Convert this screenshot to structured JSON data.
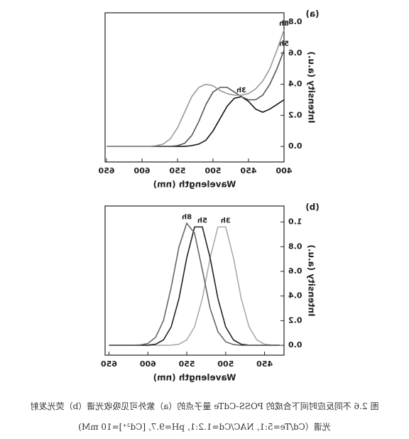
{
  "chart_data": [
    {
      "type": "line",
      "panel_label": "(a)",
      "x_label": "Wavelength (nm)",
      "y_label": "Intensity (a.u.)",
      "x": [
        400,
        410,
        420,
        430,
        440,
        450,
        460,
        470,
        480,
        490,
        500,
        510,
        520,
        530,
        540,
        550,
        560,
        570,
        580,
        590,
        600,
        610,
        620,
        630,
        640,
        650
      ],
      "series": [
        {
          "name": "3h",
          "color": "#111111",
          "values": [
            0.3,
            0.27,
            0.24,
            0.22,
            0.24,
            0.29,
            0.32,
            0.31,
            0.26,
            0.18,
            0.1,
            0.04,
            0.015,
            0.005,
            0,
            0,
            0,
            0,
            0,
            0,
            0,
            0,
            0,
            0,
            0,
            0
          ]
        },
        {
          "name": "5h",
          "color": "#555555",
          "values": [
            0.62,
            0.5,
            0.4,
            0.33,
            0.3,
            0.3,
            0.32,
            0.35,
            0.38,
            0.38,
            0.35,
            0.27,
            0.16,
            0.07,
            0.02,
            0.005,
            0,
            0,
            0,
            0,
            0,
            0,
            0,
            0,
            0,
            0
          ]
        },
        {
          "name": "8h",
          "color": "#999999",
          "values": [
            0.75,
            0.62,
            0.5,
            0.42,
            0.37,
            0.34,
            0.33,
            0.33,
            0.34,
            0.36,
            0.39,
            0.4,
            0.38,
            0.32,
            0.22,
            0.12,
            0.05,
            0.015,
            0.005,
            0,
            0,
            0,
            0,
            0,
            0,
            0
          ]
        }
      ],
      "xlim": [
        400,
        652
      ],
      "xticks": [
        400,
        450,
        500,
        550,
        600,
        650
      ],
      "ylim": [
        -0.1,
        0.86
      ],
      "yticks": [
        {
          "value": 0,
          "label": "0.0"
        },
        {
          "value": 0.2,
          "label": "0.2"
        },
        {
          "value": 0.4,
          "label": "0.4"
        },
        {
          "value": 0.6,
          "label": "0.6"
        },
        {
          "value": 0.8,
          "label": "0.8"
        }
      ]
    },
    {
      "type": "line",
      "panel_label": "(b)",
      "x_label": "Wavelength (nm)",
      "y_label": "Intensity (a.u.)",
      "x": [
        430,
        440,
        450,
        460,
        470,
        480,
        490,
        500,
        510,
        520,
        530,
        540,
        550,
        560,
        570,
        580,
        590,
        600,
        610,
        620,
        630,
        640,
        650
      ],
      "series": [
        {
          "name": "3h",
          "color": "#aaaaaa",
          "values": [
            0,
            0.0015,
            0.009,
            0.044,
            0.15,
            0.38,
            0.71,
            0.96,
            0.96,
            0.71,
            0.38,
            0.15,
            0.044,
            0.009,
            0.0015,
            0,
            0,
            0,
            0,
            0,
            0,
            0,
            0
          ]
        },
        {
          "name": "5h",
          "color": "#222222",
          "values": [
            0,
            0,
            0,
            0,
            0.0015,
            0.009,
            0.044,
            0.15,
            0.38,
            0.71,
            0.96,
            0.96,
            0.71,
            0.38,
            0.15,
            0.044,
            0.009,
            0.0015,
            0,
            0,
            0,
            0,
            0
          ]
        },
        {
          "name": "8h",
          "color": "#666666",
          "values": [
            0,
            0,
            0,
            0,
            0,
            0,
            0.006,
            0.029,
            0.11,
            0.3,
            0.61,
            0.91,
            0.99,
            0.8,
            0.47,
            0.2,
            0.066,
            0.015,
            0.003,
            0,
            0,
            0,
            0
          ]
        }
      ],
      "xlim": [
        425,
        655
      ],
      "xticks": [
        450,
        500,
        550,
        600,
        650
      ],
      "ylim": [
        -0.08,
        1.13
      ],
      "yticks": [
        {
          "value": 0,
          "label": "0.0"
        },
        {
          "value": 0.2,
          "label": "0.2"
        },
        {
          "value": 0.4,
          "label": "0.4"
        },
        {
          "value": 0.6,
          "label": "0.6"
        },
        {
          "value": 0.8,
          "label": "0.8"
        },
        {
          "value": 1,
          "label": "1.0"
        }
      ]
    }
  ],
  "caption": [
    "图 2.6 不同反应时间下合成的 POSS-CdTe 量子点的（a）紫外可见吸收光谱（b）荧光发射",
    "光谱（Cd/Te=5:1, NAC/Cd=1.2:1, pH=9.7, [Cd²⁺]=10 mM)"
  ]
}
